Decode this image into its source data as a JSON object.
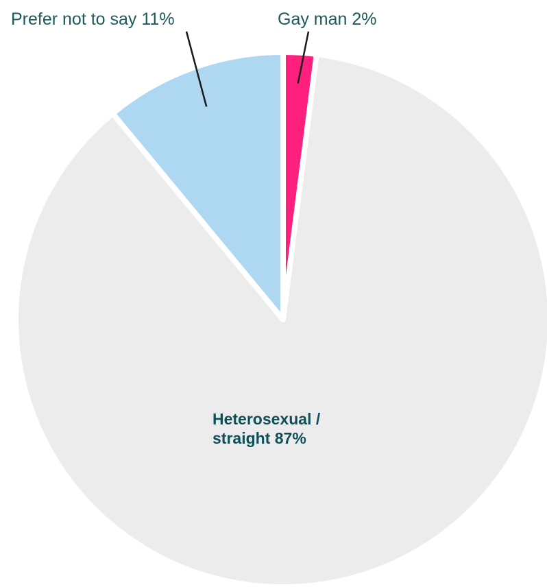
{
  "chart_data": {
    "type": "pie",
    "title": "",
    "slices": [
      {
        "label": "Gay man 2%",
        "value": 2,
        "color": "#ff1f7d"
      },
      {
        "label": "Heterosexual / straight 87%",
        "label_lines": [
          "Heterosexual /",
          "straight 87%"
        ],
        "value": 87,
        "color": "#ececec"
      },
      {
        "label": "Prefer not to say 11%",
        "value": 11,
        "color": "#aed8f2"
      }
    ],
    "legend": "none"
  }
}
